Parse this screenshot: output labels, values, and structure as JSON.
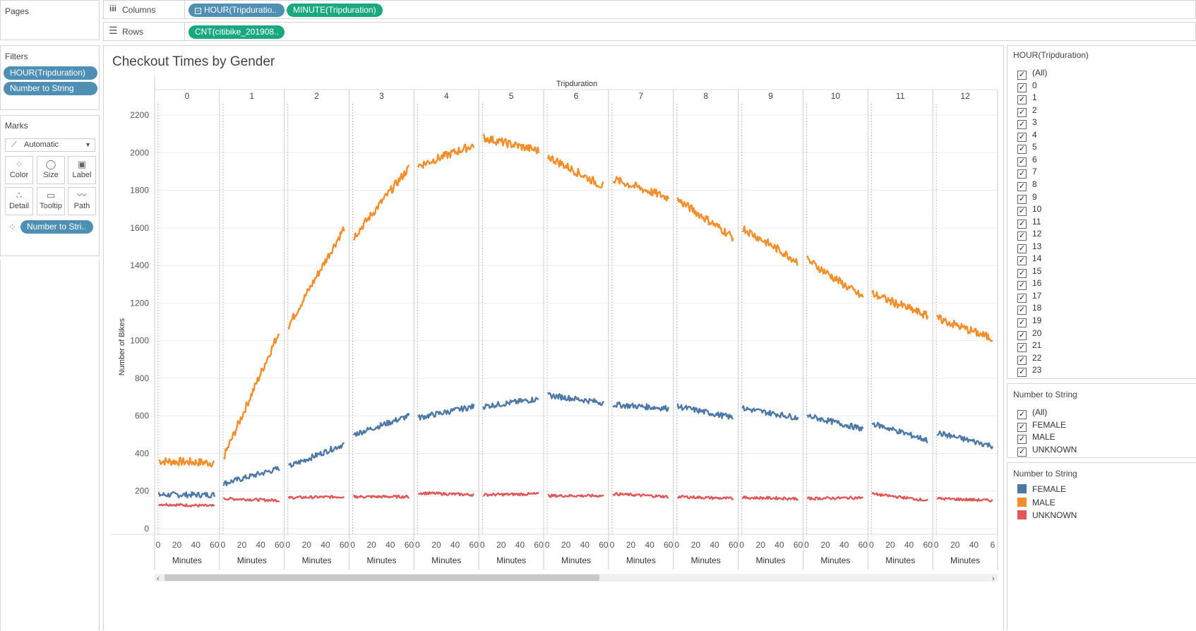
{
  "shelves": {
    "pages_label": "Pages",
    "columns_label": "Columns",
    "rows_label": "Rows",
    "columns_pills": [
      "HOUR(Tripduratio..",
      "MINUTE(Tripduration)"
    ],
    "rows_pill": "CNT(citibike_201908.."
  },
  "filters": {
    "title": "Filters",
    "items": [
      "HOUR(Tripduration)",
      "Number to String"
    ]
  },
  "marks": {
    "title": "Marks",
    "type": "Automatic",
    "buttons": [
      "Color",
      "Size",
      "Label",
      "Detail",
      "Tooltip",
      "Path"
    ],
    "color_pill": "Number to Stri.."
  },
  "hour_filter": {
    "title": "HOUR(Tripduration)",
    "items": [
      "(All)",
      "0",
      "1",
      "2",
      "3",
      "4",
      "5",
      "6",
      "7",
      "8",
      "9",
      "10",
      "11",
      "12",
      "13",
      "14",
      "15",
      "16",
      "17",
      "18",
      "19",
      "20",
      "21",
      "22",
      "23"
    ]
  },
  "gender_filter": {
    "title": "Number to String",
    "items": [
      "(All)",
      "FEMALE",
      "MALE",
      "UNKNOWN"
    ]
  },
  "legend": {
    "title": "Number to String",
    "items": [
      {
        "label": "FEMALE",
        "color": "#4e79a7"
      },
      {
        "label": "MALE",
        "color": "#f28e2b"
      },
      {
        "label": "UNKNOWN",
        "color": "#e15759"
      }
    ]
  },
  "chart_data": {
    "type": "line",
    "title": "Checkout Times by Gender",
    "column_header": "Tripduration",
    "ylabel": "Number of Bikes",
    "xlabel": "Minutes",
    "ylim": [
      0,
      2200
    ],
    "yticks": [
      0,
      200,
      400,
      600,
      800,
      1000,
      1200,
      1400,
      1600,
      1800,
      2000,
      2200
    ],
    "panels": [
      "0",
      "1",
      "2",
      "3",
      "4",
      "5",
      "6",
      "7",
      "8",
      "9",
      "10",
      "11",
      "12"
    ],
    "minute_ticks": [
      "0",
      "20",
      "40",
      "60"
    ],
    "last_panel_ticks": [
      "0",
      "20",
      "40",
      "6"
    ],
    "series": [
      {
        "name": "MALE",
        "color": "#f28e2b",
        "start": [
          360,
          380,
          1080,
          1550,
          1930,
          2080,
          1980,
          1860,
          1750,
          1600,
          1430,
          1250,
          1120
        ],
        "end": [
          350,
          1050,
          1600,
          1920,
          2040,
          2010,
          1820,
          1760,
          1550,
          1420,
          1230,
          1130,
          1010
        ]
      },
      {
        "name": "FEMALE",
        "color": "#4e79a7",
        "start": [
          180,
          240,
          330,
          500,
          590,
          650,
          710,
          660,
          650,
          640,
          600,
          560,
          510
        ],
        "end": [
          180,
          320,
          450,
          600,
          650,
          690,
          670,
          640,
          590,
          590,
          530,
          470,
          440
        ]
      },
      {
        "name": "UNKNOWN",
        "color": "#e15759",
        "start": [
          130,
          160,
          165,
          170,
          190,
          180,
          175,
          185,
          170,
          165,
          160,
          185,
          160
        ],
        "end": [
          120,
          150,
          170,
          170,
          180,
          185,
          175,
          170,
          160,
          160,
          165,
          150,
          150
        ]
      }
    ]
  }
}
